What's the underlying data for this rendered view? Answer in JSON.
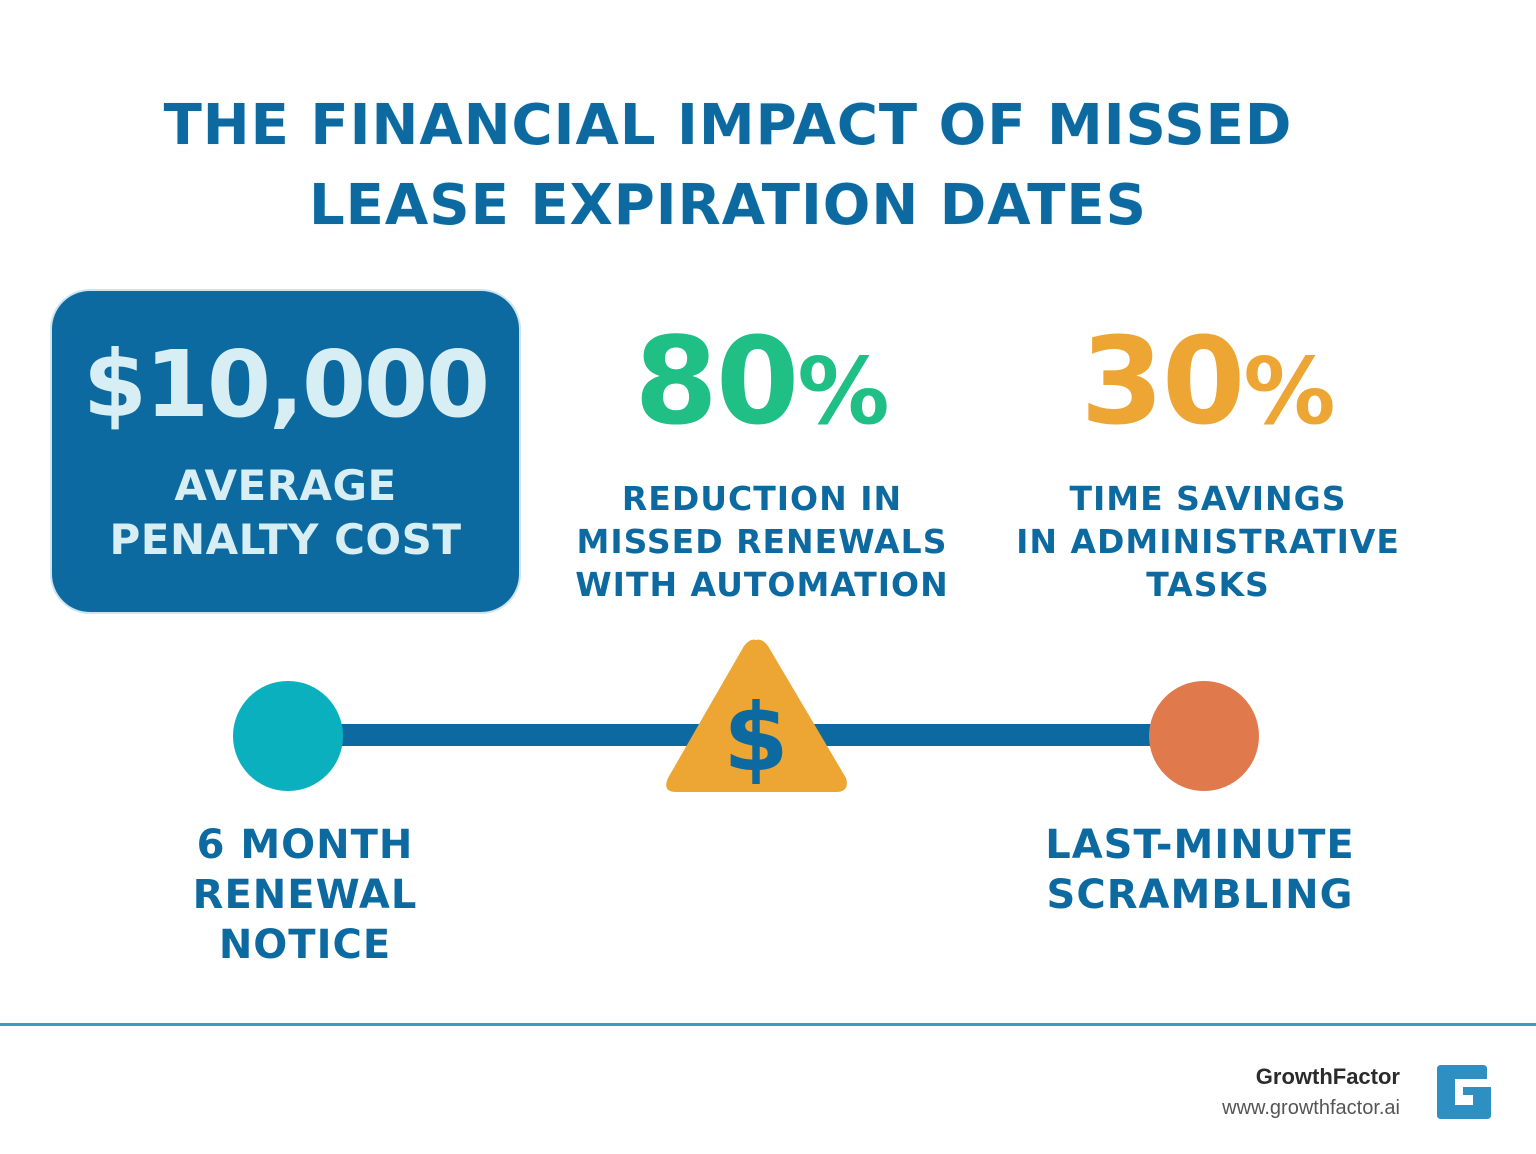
{
  "title": {
    "line1": "THE FINANCIAL IMPACT OF MISSED",
    "line2": "LEASE EXPIRATION DATES"
  },
  "stats": [
    {
      "value": "$10,000",
      "caption": [
        "AVERAGE",
        "PENALTY COST"
      ],
      "color": "#0d6aa0"
    },
    {
      "number": "80",
      "unit": "%",
      "caption": [
        "REDUCTION IN",
        "MISSED RENEWALS",
        "WITH AUTOMATION"
      ],
      "color": "#1fbf86"
    },
    {
      "number": "30",
      "unit": "%",
      "caption": [
        "TIME SAVINGS",
        "IN ADMINISTRATIVE",
        "TASKS"
      ],
      "color": "#eda534"
    }
  ],
  "timeline": {
    "start_label": [
      "6 MONTH",
      "RENEWAL NOTICE"
    ],
    "end_label": [
      "LAST-MINUTE",
      "SCRAMBLING"
    ],
    "warning_symbol": "$",
    "start_color": "#0bb0bf",
    "end_color": "#e07a4c",
    "line_color": "#0d6aa0",
    "warning_color": "#eda534",
    "icons": [
      "circle-marker-icon",
      "warning-dollar-icon",
      "circle-marker-icon"
    ]
  },
  "footer": {
    "brand": "GrowthFactor",
    "url": "www.growthfactor.ai",
    "logo_icon": "growthfactor-logo-icon"
  }
}
